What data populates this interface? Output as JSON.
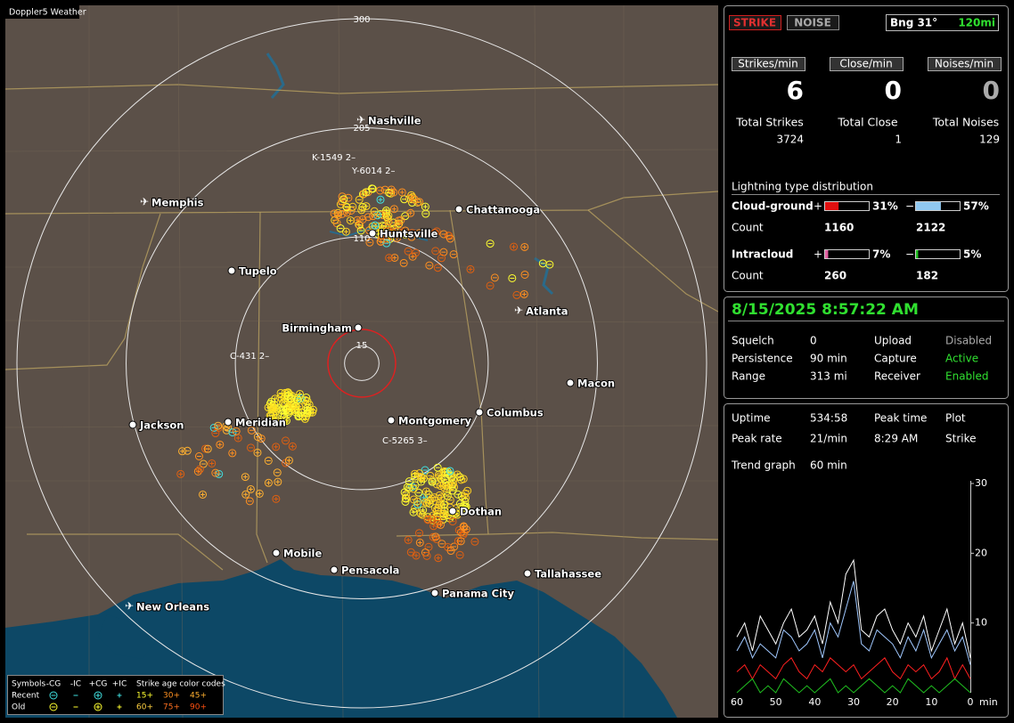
{
  "map": {
    "brand": "Doppler5 Weather",
    "rings": [
      300,
      205,
      110,
      15
    ],
    "cities": [
      {
        "label": "Nashville",
        "icon": "airport"
      },
      {
        "label": "Memphis",
        "icon": "airport"
      },
      {
        "label": "Chattanooga",
        "icon": "dot"
      },
      {
        "label": "Huntsville",
        "icon": "dot"
      },
      {
        "label": "Tupelo",
        "icon": "dot"
      },
      {
        "label": "Atlanta",
        "icon": "airport"
      },
      {
        "label": "Birmingham",
        "icon": "dot"
      },
      {
        "label": "Macon",
        "icon": "dot"
      },
      {
        "label": "Jackson",
        "icon": "dot"
      },
      {
        "label": "Meridian",
        "icon": "dot"
      },
      {
        "label": "Montgomery",
        "icon": "dot"
      },
      {
        "label": "Columbus",
        "icon": "dot"
      },
      {
        "label": "Dothan",
        "icon": "dot"
      },
      {
        "label": "Mobile",
        "icon": "dot"
      },
      {
        "label": "Pensacola",
        "icon": "dot"
      },
      {
        "label": "Tallahassee",
        "icon": "dot"
      },
      {
        "label": "Panama City",
        "icon": "dot"
      },
      {
        "label": "New Orleans",
        "icon": "airport"
      }
    ],
    "tags": [
      "K-1549 2–",
      "Y-6014 2–",
      "C-431 2–",
      "C-5265 3–"
    ]
  },
  "legend": {
    "symbols": "Symbols",
    "kinds": [
      "-CG",
      "-IC",
      "+CG",
      "+IC"
    ],
    "age_title": "Strike age color codes",
    "rows": [
      {
        "label": "Recent",
        "ages": [
          "15+",
          "30+",
          "45+"
        ]
      },
      {
        "label": "Old",
        "ages": [
          "60+",
          "75+",
          "90+"
        ]
      }
    ]
  },
  "status": {
    "strike": "STRIKE",
    "noise": "NOISE",
    "bearing": "Bng 31°",
    "range": "120mi"
  },
  "rates": {
    "headers": [
      "Strikes/min",
      "Close/min",
      "Noises/min"
    ],
    "values": [
      "6",
      "0",
      "0"
    ],
    "total_labels": [
      "Total Strikes",
      "Total Close",
      "Total Noises"
    ],
    "totals": [
      "3724",
      "1",
      "129"
    ]
  },
  "distribution": {
    "title": "Lightning type distribution",
    "groups": [
      {
        "label": "Cloud-ground",
        "count_label": "Count",
        "plus": "+",
        "minus": "−",
        "plus_pct": {
          "value": 31,
          "label": "31%"
        },
        "minus_pct": {
          "value": 57,
          "label": "57%"
        },
        "plus_count": "1160",
        "minus_count": "2122"
      },
      {
        "label": "Intracloud",
        "count_label": "Count",
        "plus": "+",
        "minus": "−",
        "plus_pct": {
          "value": 7,
          "label": "7%"
        },
        "minus_pct": {
          "value": 5,
          "label": "5%"
        },
        "plus_count": "260",
        "minus_count": "182"
      }
    ]
  },
  "clock": "8/15/2025 8:57:22 AM",
  "settings": [
    [
      "Squelch",
      "0",
      "Upload",
      "Disabled"
    ],
    [
      "Persistence",
      "90 min",
      "Capture",
      "Active"
    ],
    [
      "Range",
      "313 mi",
      "Receiver",
      "Enabled"
    ]
  ],
  "stats": [
    [
      "Uptime",
      "534:58",
      "Peak time",
      "Plot"
    ],
    [
      "Peak rate",
      "21/min",
      "8:29 AM",
      "Strike"
    ]
  ],
  "trend": {
    "label": "Trend graph",
    "span": "60 min",
    "x_unit": "min",
    "xlim": [
      60,
      0
    ],
    "xticks": [
      60,
      50,
      40,
      30,
      20,
      10,
      0
    ],
    "ylim": [
      0,
      30
    ],
    "yticks": [
      10,
      20,
      30
    ],
    "x": [
      60,
      58,
      56,
      54,
      52,
      50,
      48,
      46,
      44,
      42,
      40,
      38,
      36,
      34,
      32,
      30,
      28,
      26,
      24,
      22,
      20,
      18,
      16,
      14,
      12,
      10,
      8,
      6,
      4,
      2,
      0
    ],
    "series": [
      {
        "color": "#ffffff",
        "values": [
          8,
          10,
          6,
          11,
          9,
          7,
          10,
          12,
          8,
          9,
          11,
          7,
          13,
          10,
          17,
          19,
          9,
          8,
          11,
          12,
          9,
          7,
          10,
          8,
          11,
          6,
          9,
          12,
          7,
          10,
          5
        ]
      },
      {
        "color": "#a0c8ff",
        "values": [
          6,
          8,
          5,
          7,
          6,
          5,
          9,
          8,
          6,
          7,
          9,
          5,
          10,
          8,
          12,
          16,
          7,
          6,
          9,
          8,
          7,
          5,
          8,
          6,
          9,
          5,
          7,
          9,
          6,
          8,
          4
        ]
      },
      {
        "color": "#ff2020",
        "values": [
          3,
          4,
          2,
          4,
          3,
          2,
          4,
          5,
          3,
          2,
          4,
          3,
          5,
          4,
          3,
          4,
          2,
          3,
          4,
          5,
          3,
          2,
          4,
          3,
          4,
          2,
          3,
          5,
          2,
          4,
          2
        ]
      },
      {
        "color": "#20c020",
        "values": [
          0,
          1,
          2,
          0,
          1,
          0,
          2,
          1,
          0,
          1,
          0,
          1,
          2,
          0,
          1,
          0,
          1,
          2,
          1,
          0,
          1,
          0,
          2,
          1,
          0,
          1,
          0,
          1,
          2,
          1,
          0
        ]
      }
    ]
  }
}
